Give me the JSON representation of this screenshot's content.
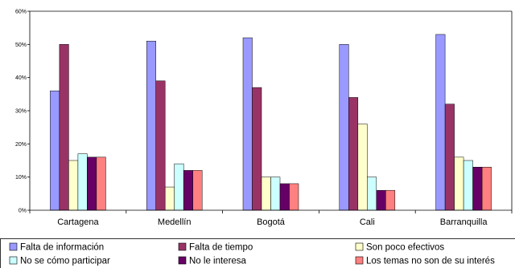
{
  "chart_data": {
    "type": "bar",
    "categories": [
      "Cartagena",
      "Medellín",
      "Bogotá",
      "Cali",
      "Barranquilla"
    ],
    "series": [
      {
        "name": "Falta de información",
        "color": "#9999ff",
        "values": [
          36,
          51,
          52,
          50,
          53
        ]
      },
      {
        "name": "Falta de tiempo",
        "color": "#993366",
        "values": [
          50,
          39,
          37,
          34,
          32
        ]
      },
      {
        "name": "Son poco efectivos",
        "color": "#ffffcc",
        "values": [
          15,
          7,
          10,
          26,
          16
        ]
      },
      {
        "name": "No se cómo participar",
        "color": "#ccffff",
        "values": [
          17,
          14,
          10,
          10,
          15
        ]
      },
      {
        "name": "No le interesa",
        "color": "#660066",
        "values": [
          16,
          12,
          8,
          6,
          13
        ]
      },
      {
        "name": "Los temas no son de su interés",
        "color": "#ff8080",
        "values": [
          16,
          12,
          8,
          6,
          13
        ]
      }
    ],
    "ylim": [
      0,
      60
    ],
    "yticks": [
      "0%",
      "10%",
      "20%",
      "30%",
      "40%",
      "50%",
      "60%"
    ],
    "grid": false,
    "legend": "bottom"
  }
}
